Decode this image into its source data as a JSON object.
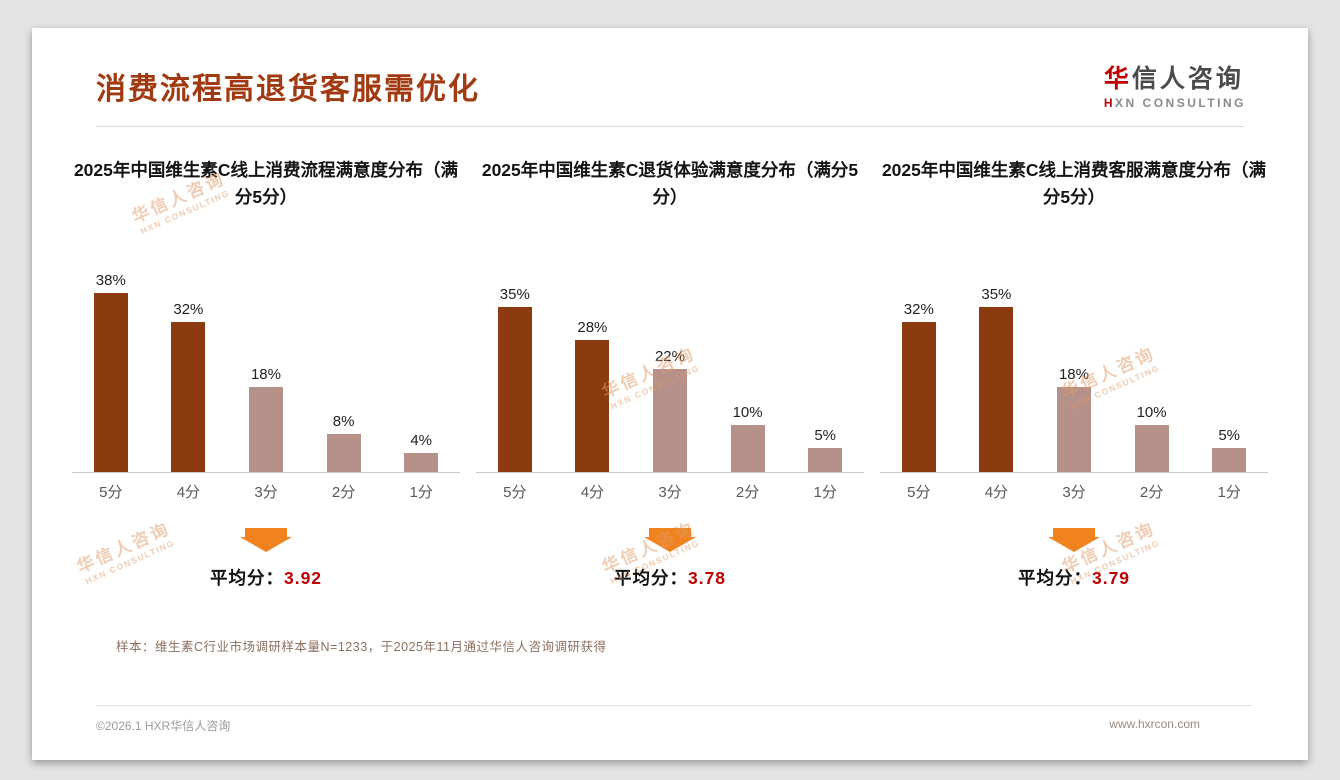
{
  "header": {
    "title": "消费流程高退货客服需优化",
    "logo": {
      "accent": "华",
      "rest": "信人咨询",
      "sub_accent": "H",
      "sub_rest": "XN CONSULTING"
    }
  },
  "watermark": {
    "line1": "华信人咨询",
    "line2": "HXN CONSULTING"
  },
  "labels": {
    "average_prefix": "平均分："
  },
  "chart_data": [
    {
      "type": "bar",
      "title": "2025年中国维生素C线上消费流程满意度分布（满分5分）",
      "categories": [
        "5分",
        "4分",
        "3分",
        "2分",
        "1分"
      ],
      "values": [
        38,
        32,
        18,
        8,
        4
      ],
      "value_labels": [
        "38%",
        "32%",
        "18%",
        "8%",
        "4%"
      ],
      "average": "3.92",
      "ylim": [
        0,
        40
      ],
      "highlight_count": 2,
      "legend": "none",
      "grid": false
    },
    {
      "type": "bar",
      "title": "2025年中国维生素C退货体验满意度分布（满分5分）",
      "categories": [
        "5分",
        "4分",
        "3分",
        "2分",
        "1分"
      ],
      "values": [
        35,
        28,
        22,
        10,
        5
      ],
      "value_labels": [
        "35%",
        "28%",
        "22%",
        "10%",
        "5%"
      ],
      "average": "3.78",
      "ylim": [
        0,
        40
      ],
      "highlight_count": 2,
      "legend": "none",
      "grid": false
    },
    {
      "type": "bar",
      "title": "2025年中国维生素C线上消费客服满意度分布（满分5分）",
      "categories": [
        "5分",
        "4分",
        "3分",
        "2分",
        "1分"
      ],
      "values": [
        32,
        35,
        18,
        10,
        5
      ],
      "value_labels": [
        "32%",
        "35%",
        "18%",
        "10%",
        "5%"
      ],
      "average": "3.79",
      "ylim": [
        0,
        40
      ],
      "highlight_count": 2,
      "legend": "none",
      "grid": false
    }
  ],
  "colors": {
    "title": "#a13a10",
    "bar_dark": "#8c3a10",
    "bar_light": "#b69189",
    "arrow": "#f0831e",
    "average_value": "#c00000",
    "watermark": "#e09a68"
  },
  "footnote": "样本：维生素C行业市场调研样本量N=1233，于2025年11月通过华信人咨询调研获得",
  "footer": {
    "left": "©2026.1 HXR华信人咨询",
    "right": "www.hxrcon.com"
  }
}
